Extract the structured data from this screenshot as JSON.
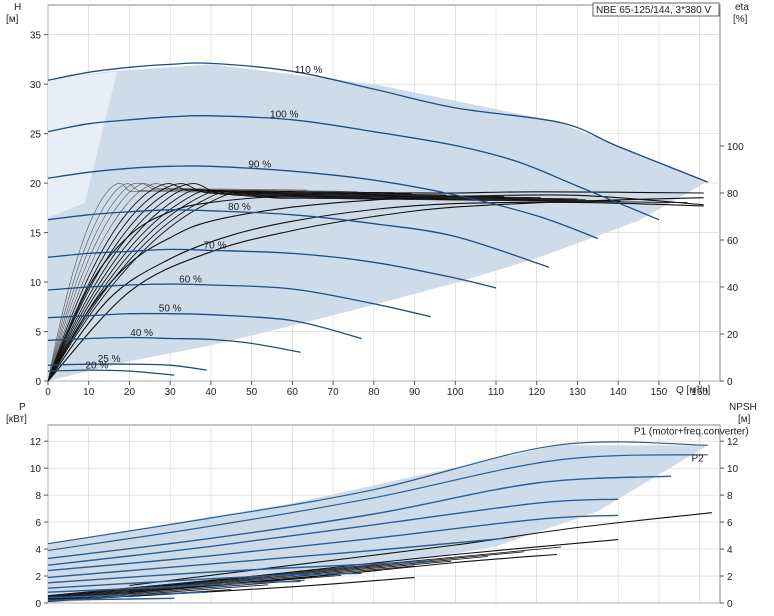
{
  "colors": {
    "envelope_fill": "#cbd9e8",
    "envelope_light": "#e6eef7",
    "curve_dark": "#1f4d80",
    "curve_black": "#111111",
    "curve_grey": "#555555",
    "power_blue": "#2b5f94",
    "gridline": "#d0d0d0"
  },
  "title": "NBE 65-125/144, 3*380 V",
  "chart_data": [
    {
      "type": "line",
      "name": "head",
      "xlabel": "Q [м³/ч]",
      "ylabel": "H",
      "ylabel_unit": "[м]",
      "y2label": "eta",
      "y2label_unit": "[%]",
      "xlim": [
        0,
        165
      ],
      "ylim": [
        0,
        38
      ],
      "y2lim": [
        0,
        160
      ],
      "xticks": [
        0,
        10,
        20,
        30,
        40,
        50,
        60,
        70,
        80,
        90,
        100,
        110,
        120,
        130,
        140,
        150,
        160
      ],
      "yticks": [
        0,
        5,
        10,
        15,
        20,
        25,
        30,
        35
      ],
      "y2ticks": [
        0,
        20,
        40,
        60,
        80,
        100
      ],
      "grid": true,
      "envelope": [
        [
          0,
          30.4
        ],
        [
          15,
          31.3
        ],
        [
          40,
          32.0
        ],
        [
          80,
          30.0
        ],
        [
          125,
          26.2
        ],
        [
          162,
          20.2
        ],
        [
          145,
          16.2
        ],
        [
          120,
          12.4
        ],
        [
          100,
          9.9
        ],
        [
          80,
          7.7
        ],
        [
          60,
          5.6
        ],
        [
          40,
          3.6
        ],
        [
          20,
          2.0
        ],
        [
          0,
          0
        ]
      ],
      "series": [
        {
          "label": "110 %",
          "label_x": 64,
          "points": [
            [
              0,
              30.4
            ],
            [
              10,
              31.2
            ],
            [
              20,
              31.7
            ],
            [
              30,
              32.0
            ],
            [
              40,
              32.1
            ],
            [
              60,
              31.3
            ],
            [
              80,
              29.5
            ],
            [
              100,
              27.6
            ],
            [
              126,
              26.1
            ],
            [
              140,
              23.7
            ],
            [
              162,
              20.1
            ]
          ]
        },
        {
          "label": "100 %",
          "label_x": 58,
          "points": [
            [
              0,
              25.2
            ],
            [
              10,
              26.0
            ],
            [
              20,
              26.4
            ],
            [
              30,
              26.7
            ],
            [
              40,
              26.8
            ],
            [
              60,
              26.4
            ],
            [
              80,
              25.2
            ],
            [
              100,
              23.8
            ],
            [
              115,
              22.2
            ],
            [
              130,
              19.7
            ],
            [
              150,
              16.3
            ]
          ]
        },
        {
          "label": "90 %",
          "label_x": 52,
          "points": [
            [
              0,
              20.5
            ],
            [
              10,
              21.1
            ],
            [
              20,
              21.5
            ],
            [
              30,
              21.7
            ],
            [
              40,
              21.7
            ],
            [
              60,
              21.2
            ],
            [
              80,
              20.3
            ],
            [
              100,
              18.8
            ],
            [
              120,
              16.7
            ],
            [
              135,
              14.4
            ]
          ]
        },
        {
          "label": "80 %",
          "label_x": 47,
          "points": [
            [
              0,
              16.3
            ],
            [
              10,
              16.8
            ],
            [
              20,
              17.1
            ],
            [
              30,
              17.3
            ],
            [
              40,
              17.2
            ],
            [
              60,
              16.8
            ],
            [
              80,
              15.9
            ],
            [
              100,
              14.6
            ],
            [
              123,
              11.5
            ]
          ]
        },
        {
          "label": "70 %",
          "label_x": 41,
          "points": [
            [
              0,
              12.5
            ],
            [
              10,
              12.9
            ],
            [
              20,
              13.1
            ],
            [
              30,
              13.3
            ],
            [
              40,
              13.2
            ],
            [
              60,
              12.9
            ],
            [
              80,
              12.0
            ],
            [
              100,
              10.4
            ],
            [
              110,
              9.4
            ]
          ]
        },
        {
          "label": "60 %",
          "label_x": 35,
          "points": [
            [
              0,
              9.2
            ],
            [
              10,
              9.5
            ],
            [
              20,
              9.7
            ],
            [
              30,
              9.8
            ],
            [
              40,
              9.7
            ],
            [
              60,
              9.3
            ],
            [
              80,
              7.8
            ],
            [
              94,
              6.5
            ]
          ]
        },
        {
          "label": "50 %",
          "label_x": 30,
          "points": [
            [
              0,
              6.4
            ],
            [
              10,
              6.6
            ],
            [
              20,
              6.8
            ],
            [
              30,
              6.8
            ],
            [
              40,
              6.7
            ],
            [
              60,
              6.1
            ],
            [
              77,
              4.3
            ]
          ]
        },
        {
          "label": "40 %",
          "label_x": 23,
          "points": [
            [
              0,
              4.1
            ],
            [
              10,
              4.3
            ],
            [
              20,
              4.4
            ],
            [
              30,
              4.3
            ],
            [
              40,
              4.2
            ],
            [
              50,
              3.8
            ],
            [
              62,
              2.9
            ]
          ]
        },
        {
          "label": "25 %",
          "label_x": 15,
          "points": [
            [
              0,
              1.6
            ],
            [
              10,
              1.7
            ],
            [
              20,
              1.7
            ],
            [
              30,
              1.6
            ],
            [
              39,
              1.1
            ]
          ]
        },
        {
          "label": "20 %",
          "label_x": 12,
          "points": [
            [
              0,
              1.0
            ],
            [
              10,
              1.1
            ],
            [
              20,
              1.0
            ],
            [
              31,
              0.6
            ]
          ]
        }
      ],
      "eta_curves": [
        {
          "points": [
            [
              0,
              0
            ],
            [
              10,
              40
            ],
            [
              20,
              62
            ],
            [
              30,
              72
            ],
            [
              40,
              76
            ],
            [
              60,
              79
            ],
            [
              80,
              80
            ],
            [
              100,
              80
            ],
            [
              120,
              80.5
            ],
            [
              161,
              80
            ]
          ]
        },
        {
          "points": [
            [
              0,
              0
            ],
            [
              10,
              30
            ],
            [
              20,
              50
            ],
            [
              30,
              61
            ],
            [
              40,
              68
            ],
            [
              60,
              74
            ],
            [
              80,
              77
            ],
            [
              100,
              78.5
            ],
            [
              130,
              79
            ],
            [
              161,
              75
            ]
          ]
        },
        {
          "points": [
            [
              0,
              0
            ],
            [
              15,
              35
            ],
            [
              30,
              52
            ],
            [
              45,
              62
            ],
            [
              60,
              68
            ],
            [
              80,
              73
            ],
            [
              100,
              75.5
            ],
            [
              130,
              76
            ],
            [
              161,
              74.5
            ]
          ]
        },
        {
          "points": [
            [
              0,
              0
            ],
            [
              20,
              38
            ],
            [
              40,
              55
            ],
            [
              60,
              64
            ],
            [
              80,
              70
            ],
            [
              100,
              74
            ],
            [
              130,
              76.5
            ],
            [
              161,
              78
            ]
          ]
        }
      ]
    },
    {
      "type": "line",
      "name": "power",
      "ylabel": "P",
      "ylabel_unit": "[кВт]",
      "y2label": "NPSH",
      "y2label_unit": "[м]",
      "xlim": [
        0,
        165
      ],
      "ylim": [
        0,
        13.2
      ],
      "yticks": [
        0,
        2,
        4,
        6,
        8,
        10,
        12
      ],
      "y2ticks": [
        0,
        2,
        4,
        6,
        8,
        10,
        12
      ],
      "grid": true,
      "envelope": [
        [
          0,
          4.4
        ],
        [
          60,
          7.4
        ],
        [
          125,
          11.7
        ],
        [
          162,
          11.7
        ],
        [
          135,
          6.8
        ],
        [
          110,
          4.2
        ],
        [
          80,
          2.6
        ],
        [
          50,
          1.3
        ],
        [
          20,
          0.4
        ],
        [
          0,
          0
        ]
      ],
      "annotations": [
        {
          "text": "P1 (motor+freq.converter)",
          "x": 150,
          "y": 12.8
        },
        {
          "text": "P2",
          "x": 158,
          "y": 10.8
        }
      ],
      "series": [
        {
          "name": "P1",
          "points": [
            [
              0,
              4.4
            ],
            [
              40,
              6.3
            ],
            [
              80,
              8.4
            ],
            [
              125,
              11.7
            ],
            [
              162,
              11.7
            ]
          ]
        },
        {
          "points": [
            [
              0,
              3.9
            ],
            [
              40,
              5.7
            ],
            [
              80,
              7.8
            ],
            [
              125,
              10.6
            ],
            [
              162,
              11.0
            ]
          ]
        },
        {
          "points": [
            [
              0,
              3.3
            ],
            [
              40,
              4.8
            ],
            [
              80,
              6.6
            ],
            [
              120,
              8.9
            ],
            [
              153,
              9.4
            ]
          ]
        },
        {
          "points": [
            [
              0,
              2.8
            ],
            [
              40,
              4.2
            ],
            [
              80,
              5.8
            ],
            [
              120,
              7.4
            ],
            [
              140,
              7.7
            ]
          ]
        },
        {
          "points": [
            [
              0,
              2.4
            ],
            [
              40,
              3.5
            ],
            [
              80,
              4.8
            ],
            [
              120,
              6.2
            ],
            [
              140,
              6.5
            ]
          ]
        },
        {
          "points": [
            [
              0,
              1.9
            ],
            [
              40,
              2.9
            ],
            [
              80,
              3.9
            ],
            [
              112,
              4.8
            ]
          ]
        },
        {
          "points": [
            [
              0,
              1.5
            ],
            [
              40,
              2.3
            ],
            [
              80,
              2.9
            ],
            [
              94,
              3.1
            ]
          ]
        },
        {
          "points": [
            [
              0,
              1.1
            ],
            [
              40,
              1.8
            ],
            [
              62,
              2.1
            ],
            [
              77,
              2.2
            ]
          ]
        },
        {
          "points": [
            [
              0,
              0.8
            ],
            [
              30,
              1.2
            ],
            [
              50,
              1.5
            ],
            [
              62,
              1.6
            ]
          ]
        },
        {
          "points": [
            [
              0,
              0.4
            ],
            [
              20,
              0.6
            ],
            [
              39,
              0.8
            ]
          ]
        },
        {
          "points": [
            [
              0,
              0.2
            ],
            [
              20,
              0.3
            ],
            [
              31,
              0.35
            ]
          ]
        }
      ],
      "npsh_curves": [
        {
          "points": [
            [
              20,
              1.3
            ],
            [
              60,
              2.8
            ],
            [
              100,
              4.3
            ],
            [
              130,
              5.6
            ],
            [
              163,
              6.7
            ]
          ]
        },
        {
          "points": [
            [
              20,
              1.0
            ],
            [
              60,
              2.3
            ],
            [
              100,
              3.6
            ],
            [
              140,
              4.7
            ]
          ]
        },
        {
          "points": [
            [
              20,
              0.8
            ],
            [
              60,
              1.8
            ],
            [
              100,
              3.0
            ],
            [
              125,
              3.6
            ]
          ]
        },
        {
          "points": [
            [
              20,
              0.5
            ],
            [
              60,
              1.2
            ],
            [
              90,
              1.9
            ]
          ]
        }
      ]
    }
  ]
}
